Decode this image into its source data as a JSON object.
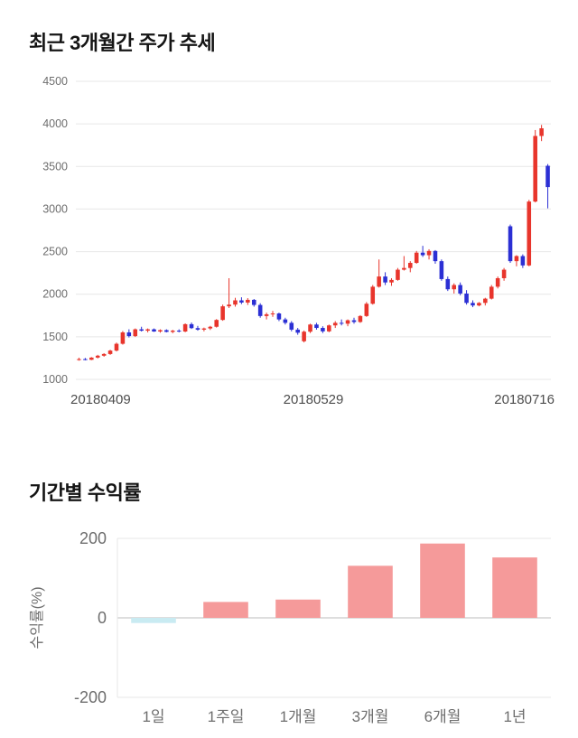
{
  "chart_data": [
    {
      "type": "candlestick",
      "title": "최근 3개월간 주가 추세",
      "x_tick_labels": [
        "20180409",
        "20180529",
        "20180716"
      ],
      "ylim": [
        1000,
        4500
      ],
      "yticks": [
        1000,
        1500,
        2000,
        2500,
        3000,
        3500,
        4000,
        4500
      ],
      "up_color": "#e8352c",
      "down_color": "#2b2fd4",
      "grid": true,
      "legend": "none",
      "candles_ohlc": [
        [
          1235,
          1255,
          1220,
          1238
        ],
        [
          1238,
          1252,
          1224,
          1230
        ],
        [
          1230,
          1262,
          1226,
          1256
        ],
        [
          1256,
          1288,
          1246,
          1278
        ],
        [
          1278,
          1308,
          1266,
          1298
        ],
        [
          1298,
          1348,
          1288,
          1338
        ],
        [
          1338,
          1432,
          1328,
          1418
        ],
        [
          1418,
          1568,
          1408,
          1552
        ],
        [
          1552,
          1588,
          1492,
          1508
        ],
        [
          1508,
          1598,
          1498,
          1588
        ],
        [
          1588,
          1618,
          1562,
          1572
        ],
        [
          1572,
          1598,
          1552,
          1588
        ],
        [
          1588,
          1598,
          1558,
          1562
        ],
        [
          1562,
          1588,
          1548,
          1578
        ],
        [
          1578,
          1588,
          1552,
          1558
        ],
        [
          1558,
          1582,
          1542,
          1572
        ],
        [
          1572,
          1588,
          1552,
          1562
        ],
        [
          1562,
          1658,
          1554,
          1648
        ],
        [
          1648,
          1668,
          1592,
          1602
        ],
        [
          1602,
          1628,
          1572,
          1584
        ],
        [
          1584,
          1608,
          1564,
          1598
        ],
        [
          1598,
          1628,
          1580,
          1618
        ],
        [
          1618,
          1708,
          1608,
          1698
        ],
        [
          1698,
          1878,
          1688,
          1858
        ],
        [
          1858,
          2188,
          1838,
          1878
        ],
        [
          1878,
          1958,
          1854,
          1928
        ],
        [
          1928,
          1964,
          1884,
          1902
        ],
        [
          1902,
          1954,
          1874,
          1934
        ],
        [
          1934,
          1944,
          1854,
          1874
        ],
        [
          1874,
          1894,
          1724,
          1744
        ],
        [
          1744,
          1784,
          1704,
          1764
        ],
        [
          1764,
          1804,
          1734,
          1774
        ],
        [
          1774,
          1784,
          1684,
          1704
        ],
        [
          1704,
          1724,
          1644,
          1664
        ],
        [
          1664,
          1684,
          1564,
          1584
        ],
        [
          1584,
          1604,
          1524,
          1548
        ],
        [
          1448,
          1574,
          1434,
          1560
        ],
        [
          1560,
          1654,
          1544,
          1644
        ],
        [
          1644,
          1664,
          1584,
          1604
        ],
        [
          1604,
          1624,
          1544,
          1564
        ],
        [
          1564,
          1644,
          1554,
          1634
        ],
        [
          1634,
          1684,
          1604,
          1664
        ],
        [
          1664,
          1704,
          1634,
          1654
        ],
        [
          1654,
          1704,
          1624,
          1694
        ],
        [
          1694,
          1724,
          1654,
          1674
        ],
        [
          1674,
          1754,
          1664,
          1744
        ],
        [
          1744,
          1908,
          1734,
          1888
        ],
        [
          1888,
          2108,
          1878,
          2088
        ],
        [
          2088,
          2408,
          2078,
          2208
        ],
        [
          2208,
          2258,
          2108,
          2138
        ],
        [
          2138,
          2188,
          2098,
          2168
        ],
        [
          2168,
          2308,
          2158,
          2288
        ],
        [
          2288,
          2448,
          2278,
          2308
        ],
        [
          2308,
          2388,
          2258,
          2368
        ],
        [
          2368,
          2508,
          2358,
          2488
        ],
        [
          2488,
          2568,
          2438,
          2458
        ],
        [
          2458,
          2528,
          2408,
          2508
        ],
        [
          2508,
          2518,
          2358,
          2388
        ],
        [
          2388,
          2408,
          2158,
          2178
        ],
        [
          2178,
          2208,
          2038,
          2058
        ],
        [
          2058,
          2128,
          2008,
          2108
        ],
        [
          2108,
          2138,
          1988,
          2008
        ],
        [
          2008,
          2048,
          1878,
          1898
        ],
        [
          1898,
          1928,
          1848,
          1868
        ],
        [
          1868,
          1908,
          1858,
          1898
        ],
        [
          1898,
          1958,
          1868,
          1948
        ],
        [
          1948,
          2108,
          1938,
          2088
        ],
        [
          2088,
          2208,
          2068,
          2188
        ],
        [
          2188,
          2308,
          2158,
          2288
        ],
        [
          2798,
          2818,
          2368,
          2388
        ],
        [
          2388,
          2458,
          2328,
          2448
        ],
        [
          2448,
          2468,
          2308,
          2338
        ],
        [
          2338,
          3108,
          2328,
          3088
        ],
        [
          3088,
          3928,
          3078,
          3858
        ],
        [
          3858,
          3988,
          3798,
          3948
        ],
        [
          3508,
          3528,
          3008,
          3258
        ]
      ]
    },
    {
      "type": "bar",
      "title": "기간별 수익률",
      "ylabel": "수익률(%)",
      "categories": [
        "1일",
        "1주일",
        "1개월",
        "3개월",
        "6개월",
        "1년"
      ],
      "values": [
        -13,
        40,
        46,
        131,
        187,
        152
      ],
      "ylim": [
        -200,
        200
      ],
      "yticks": [
        200,
        0,
        -200
      ],
      "bar_colors": [
        "#c9ebf2",
        "#f59a9a",
        "#f59a9a",
        "#f59a9a",
        "#f59a9a",
        "#f59a9a"
      ],
      "grid": true,
      "legend": "none"
    }
  ],
  "colors": {
    "grid_line": "#e7e7e7",
    "zero_line": "#bdbdbd",
    "tick_text": "#6e6e6e",
    "date_text": "#4d4d4d"
  }
}
